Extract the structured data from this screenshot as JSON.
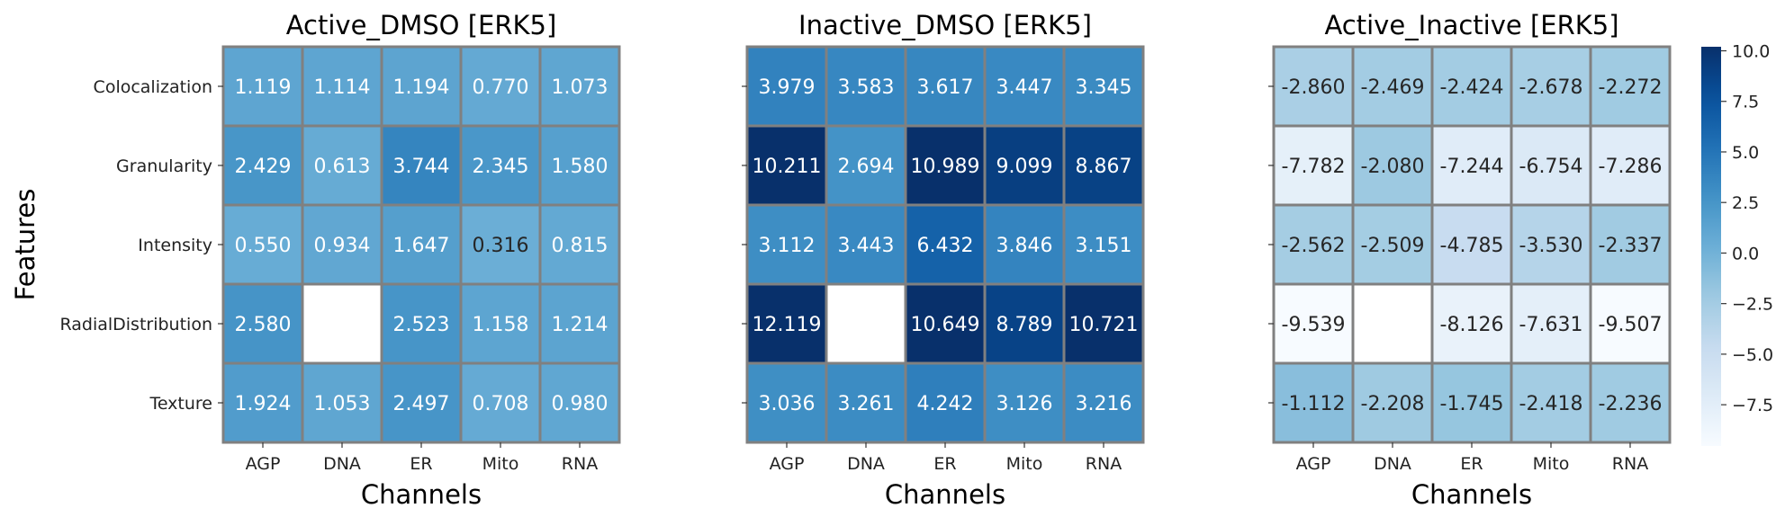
{
  "chart_data": [
    {
      "type": "heatmap",
      "title": "Active_DMSO [ERK5]",
      "xlabel": "Channels",
      "ylabel": "Features",
      "x_categories": [
        "AGP",
        "DNA",
        "ER",
        "Mito",
        "RNA"
      ],
      "y_categories": [
        "Colocalization",
        "Granularity",
        "Intensity",
        "RadialDistribution",
        "Texture"
      ],
      "cells": [
        [
          "1.119",
          "1.114",
          "1.194",
          "0.770",
          "1.073"
        ],
        [
          "2.429",
          "0.613",
          "3.744",
          "2.345",
          "1.580"
        ],
        [
          "0.550",
          "0.934",
          "1.647",
          "0.316",
          "0.815"
        ],
        [
          "2.580",
          null,
          "2.523",
          "1.158",
          "1.214"
        ],
        [
          "1.924",
          "1.053",
          "2.497",
          "0.708",
          "0.980"
        ]
      ]
    },
    {
      "type": "heatmap",
      "title": "Inactive_DMSO [ERK5]",
      "xlabel": "Channels",
      "ylabel": "",
      "x_categories": [
        "AGP",
        "DNA",
        "ER",
        "Mito",
        "RNA"
      ],
      "y_categories": [],
      "cells": [
        [
          "3.979",
          "3.583",
          "3.617",
          "3.447",
          "3.345"
        ],
        [
          "10.211",
          "2.694",
          "10.989",
          "9.099",
          "8.867"
        ],
        [
          "3.112",
          "3.443",
          "6.432",
          "3.846",
          "3.151"
        ],
        [
          "12.119",
          null,
          "10.649",
          "8.789",
          "10.721"
        ],
        [
          "3.036",
          "3.261",
          "4.242",
          "3.126",
          "3.216"
        ]
      ]
    },
    {
      "type": "heatmap",
      "title": "Active_Inactive [ERK5]",
      "xlabel": "Channels",
      "ylabel": "",
      "x_categories": [
        "AGP",
        "DNA",
        "ER",
        "Mito",
        "RNA"
      ],
      "y_categories": [],
      "cells": [
        [
          "-2.860",
          "-2.469",
          "-2.424",
          "-2.678",
          "-2.272"
        ],
        [
          "-7.782",
          "-2.080",
          "-7.244",
          "-6.754",
          "-7.286"
        ],
        [
          "-2.562",
          "-2.509",
          "-4.785",
          "-3.530",
          "-2.337"
        ],
        [
          "-9.539",
          null,
          "-8.126",
          "-7.631",
          "-9.507"
        ],
        [
          "-1.112",
          "-2.208",
          "-1.745",
          "-2.418",
          "-2.236"
        ]
      ]
    }
  ],
  "colorbar": {
    "colormap": "Blues",
    "range": [
      -9.539,
      10.2
    ],
    "ticks": [
      "10.0",
      "7.5",
      "5.0",
      "2.5",
      "0.0",
      "−2.5",
      "−5.0",
      "−7.5"
    ],
    "tick_values": [
      10,
      7.5,
      5,
      2.5,
      0,
      -2.5,
      -5,
      -7.5
    ]
  },
  "style": {
    "grid_line_color": "#808080",
    "text_dark": "#262626",
    "text_light": "#ffffff",
    "missing_color": "#ffffff"
  }
}
